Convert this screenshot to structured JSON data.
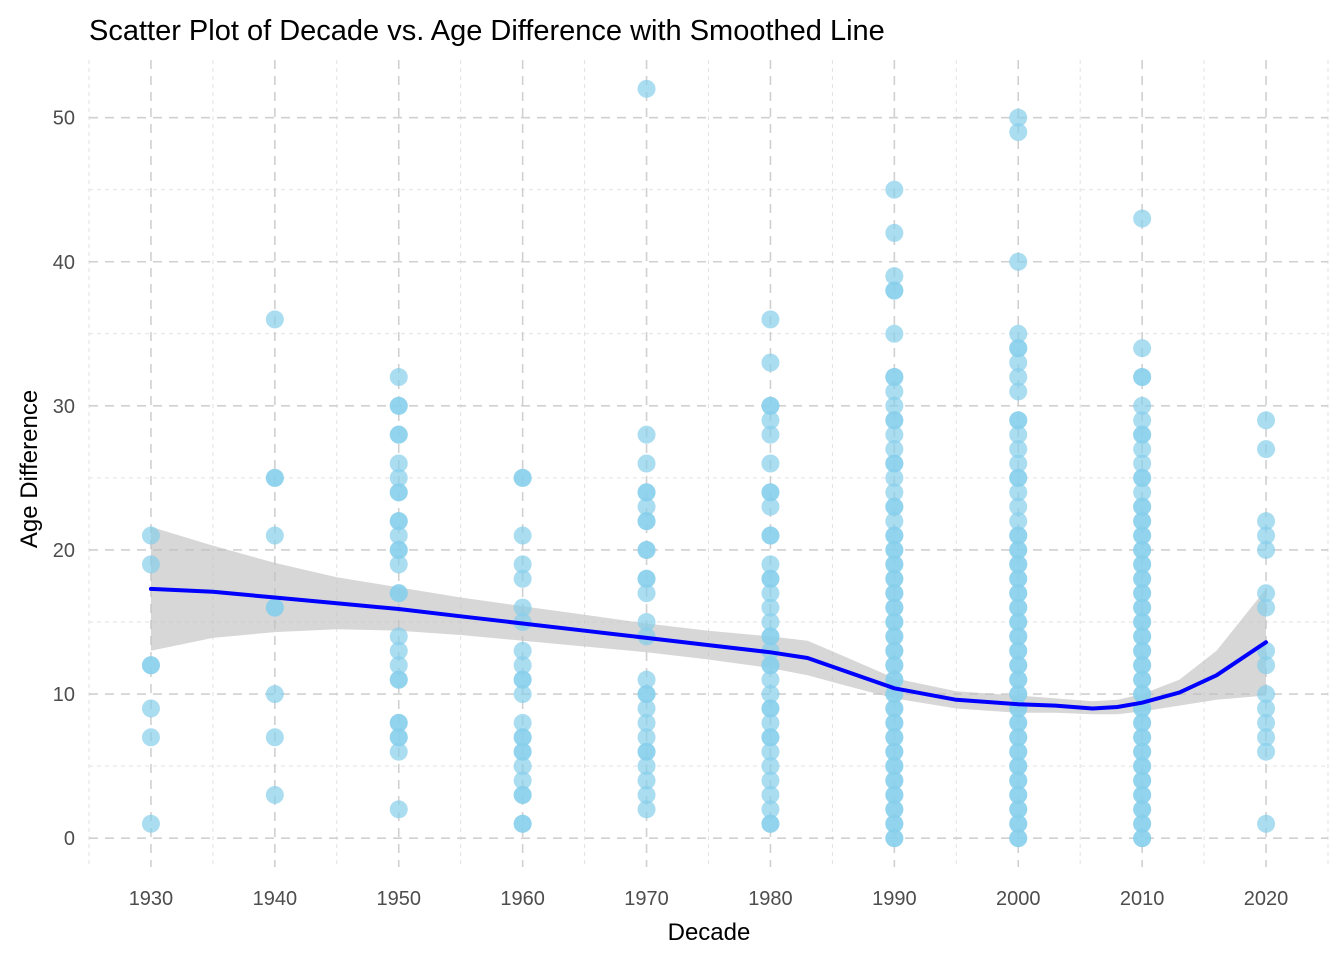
{
  "chart_data": {
    "type": "scatter",
    "title": "Scatter Plot of Decade vs. Age Difference with Smoothed Line",
    "xlabel": "Decade",
    "ylabel": "Age Difference",
    "xlim": [
      1925,
      2025
    ],
    "ylim": [
      -2,
      54
    ],
    "x_ticks": [
      1930,
      1940,
      1950,
      1960,
      1970,
      1980,
      1990,
      2000,
      2010,
      2020
    ],
    "y_ticks": [
      0,
      10,
      20,
      30,
      40,
      50
    ],
    "grid": true,
    "legend": "none",
    "colors": {
      "points": "#87ceeb",
      "smooth_line": "#0000ff",
      "confidence_band": "#bebebe"
    },
    "points_by_decade": [
      {
        "x": 1930,
        "y": [
          21,
          19,
          12,
          12,
          9,
          7,
          1
        ]
      },
      {
        "x": 1940,
        "y": [
          36,
          25,
          25,
          21,
          16,
          16,
          10,
          7,
          3
        ]
      },
      {
        "x": 1950,
        "y": [
          32,
          30,
          30,
          28,
          28,
          26,
          25,
          24,
          24,
          22,
          22,
          21,
          20,
          20,
          19,
          17,
          17,
          14,
          13,
          12,
          11,
          11,
          8,
          8,
          7,
          7,
          6,
          2
        ]
      },
      {
        "x": 1960,
        "y": [
          25,
          25,
          21,
          19,
          18,
          16,
          15,
          13,
          12,
          11,
          11,
          10,
          8,
          7,
          7,
          6,
          6,
          5,
          4,
          3,
          3,
          1,
          1
        ]
      },
      {
        "x": 1970,
        "y": [
          52,
          28,
          26,
          24,
          24,
          23,
          22,
          22,
          20,
          20,
          18,
          18,
          17,
          15,
          14,
          11,
          10,
          10,
          9,
          8,
          7,
          6,
          6,
          5,
          4,
          3,
          2
        ]
      },
      {
        "x": 1980,
        "y": [
          36,
          33,
          30,
          30,
          29,
          28,
          26,
          24,
          24,
          23,
          21,
          21,
          19,
          18,
          18,
          17,
          16,
          15,
          14,
          14,
          13,
          12,
          12,
          11,
          10,
          9,
          9,
          8,
          7,
          7,
          6,
          5,
          4,
          3,
          2,
          1,
          1
        ]
      },
      {
        "x": 1990,
        "y": [
          45,
          42,
          39,
          38,
          38,
          35,
          32,
          32,
          31,
          30,
          29,
          29,
          28,
          27,
          26,
          26,
          25,
          24,
          23,
          23,
          22,
          21,
          21,
          20,
          20,
          19,
          19,
          18,
          18,
          17,
          17,
          16,
          16,
          15,
          15,
          14,
          14,
          13,
          13,
          12,
          12,
          11,
          11,
          10,
          10,
          9,
          9,
          8,
          8,
          7,
          7,
          6,
          6,
          5,
          5,
          4,
          4,
          3,
          3,
          2,
          2,
          1,
          1,
          0,
          0
        ]
      },
      {
        "x": 2000,
        "y": [
          50,
          49,
          40,
          35,
          34,
          34,
          33,
          32,
          31,
          29,
          29,
          28,
          27,
          26,
          25,
          25,
          24,
          23,
          22,
          21,
          21,
          20,
          20,
          19,
          19,
          18,
          18,
          17,
          17,
          16,
          16,
          15,
          15,
          14,
          14,
          13,
          13,
          12,
          12,
          11,
          11,
          10,
          10,
          9,
          9,
          8,
          8,
          7,
          7,
          6,
          6,
          5,
          5,
          4,
          4,
          3,
          3,
          2,
          2,
          1,
          1,
          0,
          0
        ]
      },
      {
        "x": 2010,
        "y": [
          43,
          34,
          32,
          32,
          30,
          29,
          28,
          28,
          27,
          26,
          25,
          25,
          24,
          23,
          23,
          22,
          22,
          21,
          21,
          20,
          20,
          19,
          19,
          18,
          18,
          17,
          17,
          16,
          16,
          15,
          15,
          14,
          14,
          13,
          13,
          12,
          12,
          11,
          11,
          10,
          10,
          9,
          9,
          8,
          8,
          7,
          7,
          6,
          6,
          5,
          5,
          4,
          4,
          3,
          3,
          2,
          2,
          1,
          1,
          0,
          0
        ]
      },
      {
        "x": 2020,
        "y": [
          29,
          27,
          22,
          21,
          20,
          17,
          16,
          13,
          12,
          10,
          9,
          8,
          7,
          6,
          1
        ]
      }
    ],
    "smooth": {
      "x": [
        1930,
        1935,
        1940,
        1945,
        1950,
        1955,
        1960,
        1965,
        1970,
        1975,
        1980,
        1983,
        1986,
        1990,
        1995,
        2000,
        2003,
        2006,
        2008,
        2010,
        2013,
        2016,
        2020
      ],
      "y": [
        17.3,
        17.1,
        16.7,
        16.3,
        15.9,
        15.4,
        14.9,
        14.4,
        13.9,
        13.4,
        12.9,
        12.5,
        11.6,
        10.4,
        9.6,
        9.3,
        9.2,
        9.0,
        9.1,
        9.4,
        10.1,
        11.3,
        13.6
      ],
      "lower": [
        13.0,
        13.9,
        14.3,
        14.5,
        14.4,
        14.1,
        13.7,
        13.3,
        12.9,
        12.4,
        11.8,
        11.3,
        10.6,
        9.7,
        9.0,
        8.7,
        8.7,
        8.6,
        8.6,
        8.8,
        9.2,
        9.6,
        9.9
      ],
      "upper": [
        21.6,
        20.3,
        19.1,
        18.1,
        17.4,
        16.7,
        16.1,
        15.5,
        14.9,
        14.4,
        14.0,
        13.7,
        12.6,
        11.1,
        10.2,
        9.9,
        9.7,
        9.5,
        9.6,
        10.0,
        11.0,
        13.0,
        17.3
      ]
    }
  }
}
